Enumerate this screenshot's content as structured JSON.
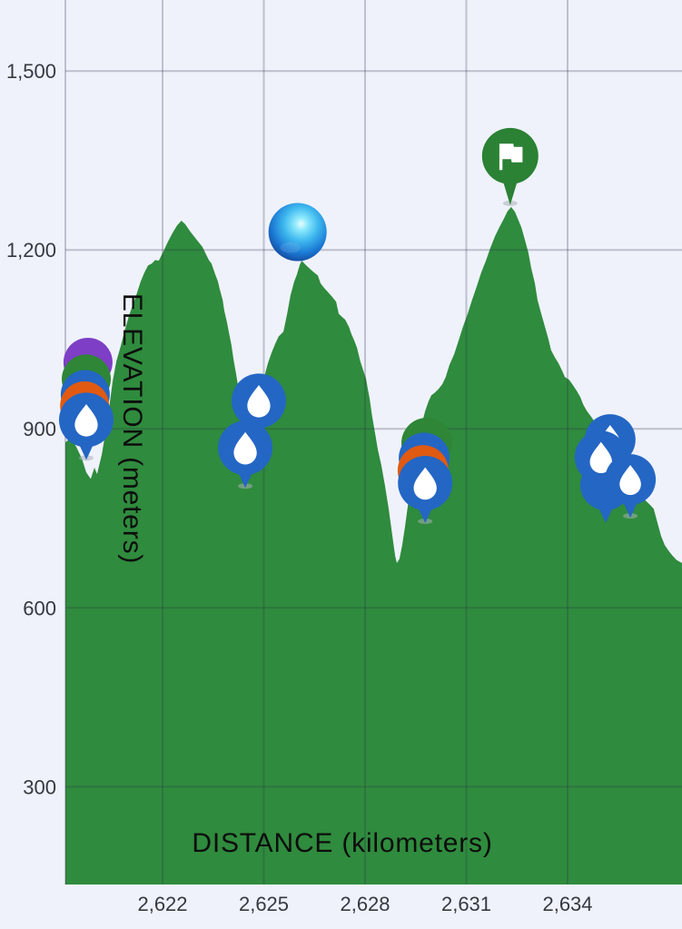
{
  "chart_data": {
    "type": "area",
    "title": "",
    "xlabel": "DISTANCE (kilometers)",
    "ylabel": "ELEVATION (meters)",
    "xlim": [
      2619.12,
      2637.39
    ],
    "ylim": [
      136,
      1619
    ],
    "x_ticks": [
      2622,
      2625,
      2628,
      2631,
      2634
    ],
    "x_tick_labels": [
      "2,622",
      "2,625",
      "2,628",
      "2,631",
      "2,634"
    ],
    "y_ticks": [
      300,
      600,
      900,
      1200,
      1500
    ],
    "y_tick_labels": [
      "300",
      "600",
      "900",
      "1,200",
      "1,500"
    ],
    "grid": true,
    "legend": false,
    "colors": {
      "background": "#eff2fb",
      "area": "#2f8b3d",
      "gridline": "rgba(45,50,75,0.26)",
      "tick_text": "#36393f",
      "axis_text": "#0d0d0d",
      "pin_blue": "#2466c4",
      "pin_orange": "#e05a11",
      "pin_purple": "#7e3ec5",
      "pin_green": "#2e8636",
      "flag_green": "#2b8134",
      "icon_white": "#ffffff",
      "sphere_highlight": "#e8fcff",
      "sphere_light": "#8ce8fc",
      "sphere_mid": "#3fb9ef",
      "sphere_deep": "#1b7ad4",
      "sphere_edge": "#123f93"
    },
    "profile": [
      [
        2619.12,
        877
      ],
      [
        2619.28,
        885
      ],
      [
        2619.44,
        870
      ],
      [
        2619.61,
        850
      ],
      [
        2619.74,
        827
      ],
      [
        2619.87,
        816
      ],
      [
        2619.98,
        835
      ],
      [
        2620.06,
        824
      ],
      [
        2620.2,
        857
      ],
      [
        2620.36,
        911
      ],
      [
        2620.52,
        979
      ],
      [
        2620.63,
        1013
      ],
      [
        2620.76,
        1039
      ],
      [
        2620.87,
        1063
      ],
      [
        2621.0,
        1089
      ],
      [
        2621.11,
        1107
      ],
      [
        2621.22,
        1124
      ],
      [
        2621.35,
        1147
      ],
      [
        2621.46,
        1162
      ],
      [
        2621.57,
        1174
      ],
      [
        2621.68,
        1177
      ],
      [
        2621.78,
        1183
      ],
      [
        2621.89,
        1182
      ],
      [
        2622.03,
        1198
      ],
      [
        2622.16,
        1214
      ],
      [
        2622.3,
        1229
      ],
      [
        2622.43,
        1241
      ],
      [
        2622.56,
        1249
      ],
      [
        2622.67,
        1243
      ],
      [
        2622.83,
        1230
      ],
      [
        2622.97,
        1220
      ],
      [
        2623.08,
        1212
      ],
      [
        2623.18,
        1205
      ],
      [
        2623.29,
        1192
      ],
      [
        2623.37,
        1183
      ],
      [
        2623.45,
        1177
      ],
      [
        2623.56,
        1159
      ],
      [
        2623.64,
        1147
      ],
      [
        2623.69,
        1135
      ],
      [
        2623.78,
        1116
      ],
      [
        2623.83,
        1098
      ],
      [
        2623.91,
        1078
      ],
      [
        2623.96,
        1063
      ],
      [
        2624.04,
        1040
      ],
      [
        2624.1,
        1017
      ],
      [
        2624.18,
        991
      ],
      [
        2624.26,
        964
      ],
      [
        2624.34,
        933
      ],
      [
        2624.42,
        906
      ],
      [
        2624.5,
        888
      ],
      [
        2624.58,
        885
      ],
      [
        2624.66,
        903
      ],
      [
        2624.74,
        926
      ],
      [
        2624.85,
        949
      ],
      [
        2624.93,
        967
      ],
      [
        2625.01,
        987
      ],
      [
        2625.12,
        1010
      ],
      [
        2625.23,
        1028
      ],
      [
        2625.34,
        1043
      ],
      [
        2625.44,
        1055
      ],
      [
        2625.58,
        1063
      ],
      [
        2625.69,
        1093
      ],
      [
        2625.79,
        1124
      ],
      [
        2625.9,
        1147
      ],
      [
        2625.98,
        1159
      ],
      [
        2626.06,
        1174
      ],
      [
        2626.12,
        1182
      ],
      [
        2626.22,
        1176
      ],
      [
        2626.33,
        1170
      ],
      [
        2626.47,
        1163
      ],
      [
        2626.6,
        1157
      ],
      [
        2626.68,
        1144
      ],
      [
        2626.79,
        1136
      ],
      [
        2626.92,
        1128
      ],
      [
        2627.03,
        1121
      ],
      [
        2627.14,
        1113
      ],
      [
        2627.22,
        1093
      ],
      [
        2627.33,
        1087
      ],
      [
        2627.41,
        1083
      ],
      [
        2627.52,
        1071
      ],
      [
        2627.6,
        1058
      ],
      [
        2627.68,
        1048
      ],
      [
        2627.76,
        1036
      ],
      [
        2627.86,
        1013
      ],
      [
        2627.95,
        997
      ],
      [
        2628.03,
        984
      ],
      [
        2628.08,
        967
      ],
      [
        2628.13,
        952
      ],
      [
        2628.21,
        921
      ],
      [
        2628.3,
        891
      ],
      [
        2628.38,
        865
      ],
      [
        2628.48,
        839
      ],
      [
        2628.59,
        804
      ],
      [
        2628.7,
        766
      ],
      [
        2628.81,
        720
      ],
      [
        2628.89,
        687
      ],
      [
        2628.94,
        675
      ],
      [
        2629.02,
        682
      ],
      [
        2629.1,
        705
      ],
      [
        2629.18,
        735
      ],
      [
        2629.29,
        781
      ],
      [
        2629.37,
        812
      ],
      [
        2629.45,
        842
      ],
      [
        2629.56,
        877
      ],
      [
        2629.67,
        906
      ],
      [
        2629.78,
        930
      ],
      [
        2629.88,
        946
      ],
      [
        2629.96,
        956
      ],
      [
        2630.07,
        961
      ],
      [
        2630.18,
        967
      ],
      [
        2630.29,
        975
      ],
      [
        2630.39,
        987
      ],
      [
        2630.5,
        1007
      ],
      [
        2630.64,
        1025
      ],
      [
        2630.77,
        1048
      ],
      [
        2630.9,
        1071
      ],
      [
        2631.04,
        1093
      ],
      [
        2631.17,
        1116
      ],
      [
        2631.31,
        1139
      ],
      [
        2631.44,
        1162
      ],
      [
        2631.58,
        1182
      ],
      [
        2631.71,
        1203
      ],
      [
        2631.85,
        1223
      ],
      [
        2631.98,
        1238
      ],
      [
        2632.12,
        1253
      ],
      [
        2632.22,
        1265
      ],
      [
        2632.33,
        1272
      ],
      [
        2632.44,
        1264
      ],
      [
        2632.52,
        1253
      ],
      [
        2632.63,
        1238
      ],
      [
        2632.73,
        1218
      ],
      [
        2632.84,
        1195
      ],
      [
        2632.92,
        1170
      ],
      [
        2633.03,
        1144
      ],
      [
        2633.11,
        1116
      ],
      [
        2633.22,
        1093
      ],
      [
        2633.33,
        1071
      ],
      [
        2633.43,
        1051
      ],
      [
        2633.51,
        1032
      ],
      [
        2633.62,
        1020
      ],
      [
        2633.73,
        1010
      ],
      [
        2633.84,
        997
      ],
      [
        2633.92,
        987
      ],
      [
        2634.05,
        982
      ],
      [
        2634.16,
        973
      ],
      [
        2634.27,
        964
      ],
      [
        2634.38,
        953
      ],
      [
        2634.46,
        941
      ],
      [
        2634.57,
        930
      ],
      [
        2634.73,
        918
      ],
      [
        2634.89,
        903
      ],
      [
        2635.02,
        888
      ],
      [
        2635.16,
        870
      ],
      [
        2635.32,
        850
      ],
      [
        2635.48,
        835
      ],
      [
        2635.64,
        821
      ],
      [
        2635.8,
        809
      ],
      [
        2635.96,
        795
      ],
      [
        2636.13,
        784
      ],
      [
        2636.29,
        781
      ],
      [
        2636.45,
        772
      ],
      [
        2636.55,
        766
      ],
      [
        2636.66,
        743
      ],
      [
        2636.77,
        720
      ],
      [
        2636.88,
        705
      ],
      [
        2636.99,
        696
      ],
      [
        2637.1,
        688
      ],
      [
        2637.23,
        680
      ],
      [
        2637.39,
        675
      ]
    ],
    "markers": [
      {
        "kind": "pin",
        "color": "purple",
        "icon": "none",
        "km": 2619.79,
        "elev": 949,
        "r": 27
      },
      {
        "kind": "pin",
        "color": "green",
        "icon": "none",
        "km": 2619.74,
        "elev": 921,
        "r": 27
      },
      {
        "kind": "pin",
        "color": "blue",
        "icon": "none",
        "km": 2619.71,
        "elev": 895,
        "r": 27
      },
      {
        "kind": "pin",
        "color": "orange",
        "icon": "none",
        "km": 2619.69,
        "elev": 876,
        "r": 27
      },
      {
        "kind": "pin",
        "color": "blue",
        "icon": "drop",
        "km": 2619.74,
        "elev": 848,
        "r": 30,
        "shadow": true
      },
      {
        "kind": "pin",
        "color": "blue",
        "icon": "drop",
        "km": 2624.85,
        "elev": 880,
        "r": 30
      },
      {
        "kind": "pin",
        "color": "blue",
        "icon": "drop",
        "km": 2624.45,
        "elev": 801,
        "r": 30,
        "shadow": true
      },
      {
        "kind": "sphere",
        "km": 2626.0,
        "elev": 1230,
        "r": 32
      },
      {
        "kind": "pin",
        "color": "green",
        "icon": "none",
        "km": 2629.83,
        "elev": 812,
        "r": 28
      },
      {
        "kind": "pin",
        "color": "blue",
        "icon": "none",
        "km": 2629.75,
        "elev": 787,
        "r": 28
      },
      {
        "kind": "pin",
        "color": "orange",
        "icon": "none",
        "km": 2629.72,
        "elev": 766,
        "r": 28
      },
      {
        "kind": "pin",
        "color": "blue",
        "icon": "drop",
        "km": 2629.78,
        "elev": 742,
        "r": 30,
        "shadow": true
      },
      {
        "kind": "flag",
        "km": 2632.3,
        "elev": 1275,
        "r": 31,
        "shadow": true
      },
      {
        "kind": "pin",
        "color": "blue",
        "icon": "none",
        "km": 2635.13,
        "elev": 742,
        "r": 28
      },
      {
        "kind": "pin",
        "color": "blue",
        "icon": "drop",
        "km": 2635.26,
        "elev": 818,
        "r": 28
      },
      {
        "kind": "pin",
        "color": "blue",
        "icon": "drop",
        "km": 2634.99,
        "elev": 787,
        "r": 29
      },
      {
        "kind": "pin",
        "color": "blue",
        "icon": "drop",
        "km": 2635.86,
        "elev": 751,
        "r": 28,
        "shadow": true
      }
    ]
  }
}
